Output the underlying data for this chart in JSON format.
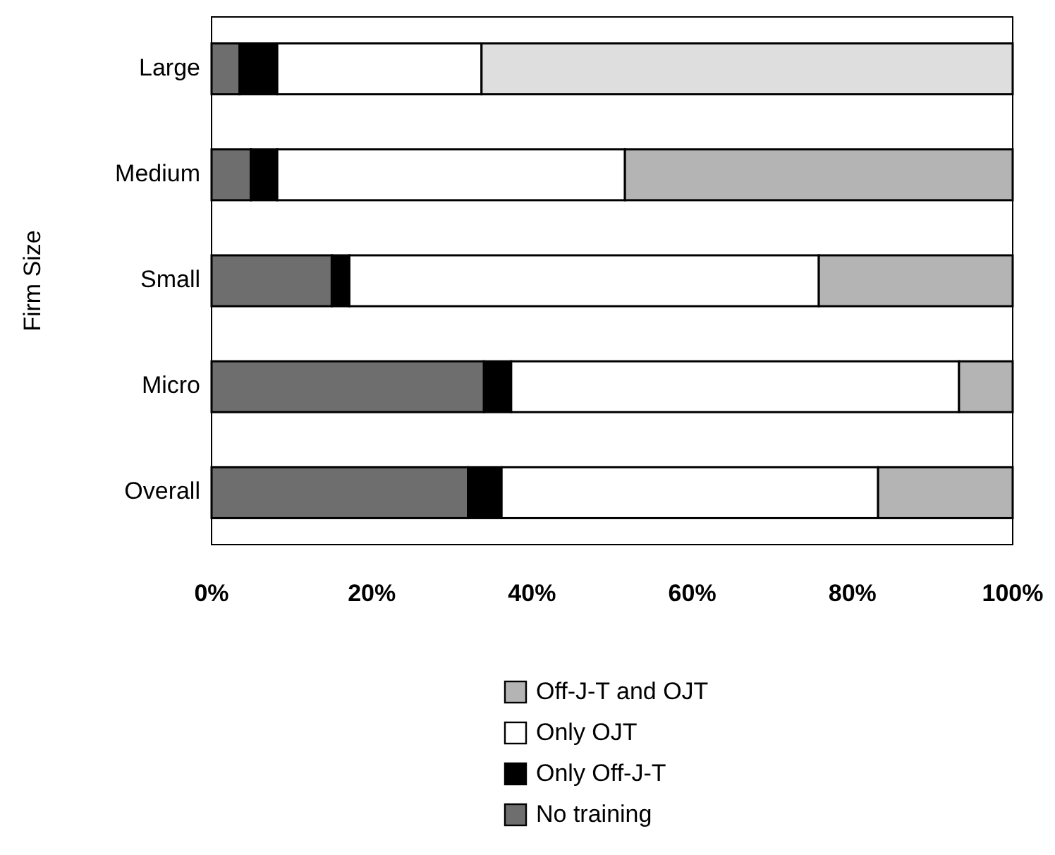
{
  "chart_data": {
    "type": "bar",
    "orientation": "horizontal",
    "stacked": true,
    "ylabel": "Firm Size",
    "categories": [
      "Large",
      "Medium",
      "Small",
      "Micro",
      "Overall"
    ],
    "series": [
      {
        "name": "No training",
        "color": "#6e6e6e",
        "values": [
          3.5,
          4.9,
          15,
          34,
          32
        ]
      },
      {
        "name": "Only Off-J-T",
        "color": "#000000",
        "values": [
          4.7,
          3.3,
          2.2,
          3.4,
          4.2
        ]
      },
      {
        "name": "Only OJT",
        "color": "#ffffff",
        "values": [
          25.5,
          43.4,
          58.6,
          55.9,
          47
        ]
      },
      {
        "name": "Off-J-T and OJT",
        "color": "#b4b4b4",
        "colors": [
          "#dedede",
          "#b4b4b4",
          "#b4b4b4",
          "#b4b4b4",
          "#b4b4b4"
        ],
        "values": [
          66.3,
          48.4,
          24.2,
          6.7,
          16.8
        ]
      }
    ],
    "xlim": [
      0,
      100
    ],
    "xticks": [
      {
        "value": 0,
        "label": "0%"
      },
      {
        "value": 20,
        "label": "20%"
      },
      {
        "value": 40,
        "label": "40%"
      },
      {
        "value": 60,
        "label": "60%"
      },
      {
        "value": 80,
        "label": "80%"
      },
      {
        "value": 100,
        "label": "100%"
      }
    ],
    "grid": false,
    "legend": "bottom"
  }
}
